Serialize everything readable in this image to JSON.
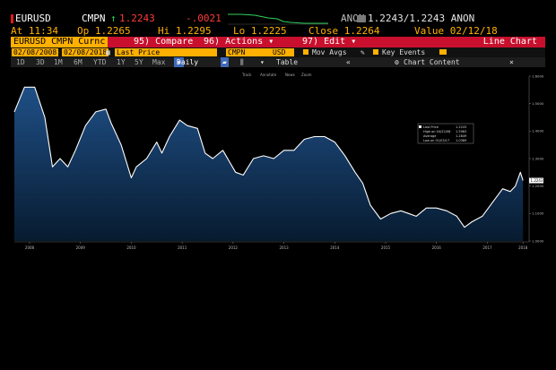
{
  "ticker": {
    "symbol": "EURUSD",
    "source": "CMPN",
    "direction_arrow": "↑",
    "last": "1.2243",
    "change": "-.0021",
    "bid_ask": "1.2243/1.2243",
    "anon": "ANON"
  },
  "quote": {
    "at": "At 11:34",
    "open": "Op 1.2265",
    "high": "Hi 1.2295",
    "low": "Lo 1.2225",
    "close": "Close 1.2264",
    "value": "Value 02/12/18"
  },
  "menu": {
    "security": "EURUSD CMPN Curnc",
    "compare": "95) Compare",
    "actions": "96) Actions",
    "edit": "97) Edit",
    "dropdown_arrow": "▾",
    "line_chart": "Line Chart"
  },
  "controls": {
    "start_date": "02/08/2008",
    "end_date": "02/08/2018",
    "field": "Last Price",
    "source": "CMPN",
    "currency": "USD",
    "mov_avgs": "Mov Avgs",
    "key_events": "Key Events"
  },
  "periods": [
    "1D",
    "3D",
    "1M",
    "6M",
    "YTD",
    "1Y",
    "5Y",
    "Max"
  ],
  "toolbar": {
    "frequency": "Daily",
    "table": "Table",
    "chart_content": "Chart Content"
  },
  "legend": [
    "Track",
    "Annotate",
    "News",
    "Zoom"
  ],
  "chart_data": {
    "type": "area",
    "x": [
      2008.1,
      2008.3,
      2008.5,
      2008.7,
      2008.85,
      2009.0,
      2009.15,
      2009.3,
      2009.5,
      2009.7,
      2009.9,
      2010.0,
      2010.2,
      2010.4,
      2010.5,
      2010.7,
      2010.9,
      2011.0,
      2011.15,
      2011.35,
      2011.5,
      2011.7,
      2011.85,
      2012.0,
      2012.2,
      2012.45,
      2012.6,
      2012.8,
      2013.0,
      2013.2,
      2013.4,
      2013.6,
      2013.8,
      2014.0,
      2014.2,
      2014.4,
      2014.6,
      2014.8,
      2014.95,
      2015.1,
      2015.3,
      2015.5,
      2015.7,
      2015.85,
      2016.0,
      2016.2,
      2016.4,
      2016.6,
      2016.8,
      2016.95,
      2017.1,
      2017.3,
      2017.5,
      2017.7,
      2017.85,
      2017.95,
      2018.05,
      2018.1
    ],
    "values": [
      1.47,
      1.56,
      1.56,
      1.45,
      1.27,
      1.3,
      1.27,
      1.33,
      1.42,
      1.47,
      1.48,
      1.43,
      1.35,
      1.23,
      1.27,
      1.3,
      1.36,
      1.32,
      1.38,
      1.44,
      1.42,
      1.41,
      1.32,
      1.3,
      1.33,
      1.25,
      1.24,
      1.3,
      1.31,
      1.3,
      1.33,
      1.33,
      1.37,
      1.38,
      1.38,
      1.36,
      1.31,
      1.25,
      1.21,
      1.13,
      1.08,
      1.1,
      1.11,
      1.1,
      1.09,
      1.12,
      1.12,
      1.11,
      1.09,
      1.05,
      1.07,
      1.09,
      1.14,
      1.19,
      1.18,
      1.2,
      1.25,
      1.22
    ],
    "xlim": [
      2008.1,
      2018.15
    ],
    "ylim": [
      1.0,
      1.6
    ],
    "y_ticks": [
      1.0,
      1.1,
      1.2,
      1.3,
      1.4,
      1.5,
      1.6
    ],
    "y_tick_labels": [
      "1.0000",
      "1.1000",
      "1.2000",
      "1.3000",
      "1.4000",
      "1.5000",
      "1.6000"
    ],
    "x_ticks": [
      2008,
      2009,
      2010,
      2011,
      2012,
      2013,
      2014,
      2015,
      2016,
      2017,
      2018
    ],
    "x_tick_positions": [
      2008.4,
      2009.4,
      2010.4,
      2011.4,
      2012.4,
      2013.4,
      2014.4,
      2015.4,
      2016.4,
      2017.4,
      2018.1
    ],
    "last_value_label": "1.2243",
    "stats_box": [
      {
        "label": "Last Price",
        "value": "1.2243"
      },
      {
        "label": "High on 04/22/08",
        "value": "1.5983"
      },
      {
        "label": "Average",
        "value": "1.2849"
      },
      {
        "label": "Low on 01/03/17",
        "value": "1.0389"
      }
    ],
    "colors": {
      "fill_top": "#1f4f86",
      "fill_bottom": "#071b30",
      "line": "#ffffff"
    },
    "grid": false
  }
}
